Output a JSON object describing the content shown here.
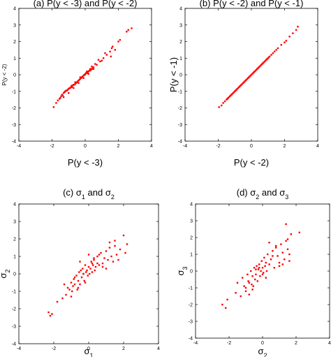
{
  "chart_data": [
    {
      "type": "scatter",
      "title": "(a) P(y < -3) and P(y < -2)",
      "xlabel": "P(y < -3)",
      "ylabel": "P(y < -2)",
      "xlim": [
        -4,
        4
      ],
      "ylim": [
        -4,
        4
      ],
      "xticks": [
        "-4",
        "-2",
        "0",
        "2",
        "4"
      ],
      "yticks": [
        "-4",
        "-3",
        "-2",
        "-1",
        "0",
        "1",
        "2",
        "3",
        "4"
      ],
      "grid": false,
      "marker_color": "#ff0000",
      "x": [
        -1.9,
        -1.75,
        -1.65,
        -1.55,
        -1.5,
        -1.45,
        -1.4,
        -1.35,
        -1.3,
        -1.25,
        -1.2,
        -1.15,
        -1.1,
        -1.05,
        -1.0,
        -0.95,
        -0.9,
        -0.85,
        -0.8,
        -0.75,
        -0.7,
        -0.65,
        -0.6,
        -0.55,
        -0.5,
        -0.45,
        -0.4,
        -0.35,
        -0.3,
        -0.25,
        -0.2,
        -0.15,
        -0.1,
        -0.05,
        0.0,
        0.05,
        0.1,
        0.15,
        0.2,
        0.25,
        0.3,
        0.35,
        0.4,
        0.45,
        0.5,
        -1.3,
        -1.0,
        -0.7,
        -0.4,
        -0.1,
        0.2,
        0.5,
        -1.2,
        -0.8,
        -0.3,
        0.1,
        0.4,
        -0.6,
        0.0,
        0.3,
        0.7,
        0.9,
        1.1,
        1.3,
        1.5,
        1.55,
        1.6,
        1.65,
        1.8,
        2.0,
        2.1,
        2.5,
        2.6,
        2.8,
        0.6,
        0.8,
        1.0,
        1.2
      ],
      "y": [
        -1.95,
        -1.7,
        -1.55,
        -1.45,
        -1.4,
        -1.3,
        -1.2,
        -1.25,
        -1.1,
        -1.05,
        -1.0,
        -0.95,
        -0.95,
        -0.9,
        -0.85,
        -0.8,
        -0.8,
        -0.7,
        -0.75,
        -0.65,
        -0.6,
        -0.6,
        -0.55,
        -0.5,
        -0.45,
        -0.4,
        -0.35,
        -0.3,
        -0.25,
        -0.2,
        -0.15,
        -0.1,
        -0.05,
        0.0,
        0.05,
        0.1,
        0.1,
        0.15,
        0.2,
        0.25,
        0.25,
        0.3,
        0.35,
        0.4,
        0.45,
        -1.35,
        -1.1,
        -0.8,
        -0.5,
        -0.2,
        0.05,
        0.35,
        -1.0,
        -0.65,
        -0.15,
        0.2,
        0.5,
        -0.45,
        0.0,
        0.35,
        0.6,
        0.8,
        1.0,
        1.2,
        1.4,
        1.1,
        1.6,
        1.7,
        1.5,
        2.0,
        2.1,
        2.6,
        2.7,
        2.8,
        0.65,
        0.9,
        0.85,
        1.3
      ]
    },
    {
      "type": "scatter",
      "title": "(b) P(y < -2) and P(y < -1)",
      "xlabel": "P(y < -2)",
      "ylabel": "P(y < -1)",
      "xlim": [
        -4,
        4
      ],
      "ylim": [
        -4,
        4
      ],
      "xticks": [
        "-4",
        "-2",
        "0",
        "2",
        "4"
      ],
      "yticks": [
        "-4",
        "-3",
        "-2",
        "-1",
        "0",
        "1",
        "2",
        "3",
        "4"
      ],
      "grid": false,
      "marker_color": "#ff0000",
      "x": [
        -1.95,
        -1.8,
        -1.7,
        -1.6,
        -1.5,
        -1.45,
        -1.4,
        -1.35,
        -1.3,
        -1.25,
        -1.2,
        -1.15,
        -1.1,
        -1.05,
        -1.0,
        -0.95,
        -0.9,
        -0.85,
        -0.8,
        -0.75,
        -0.7,
        -0.65,
        -0.6,
        -0.55,
        -0.5,
        -0.45,
        -0.4,
        -0.35,
        -0.3,
        -0.25,
        -0.2,
        -0.15,
        -0.1,
        -0.05,
        0.0,
        0.05,
        0.1,
        0.15,
        0.2,
        0.25,
        0.3,
        0.35,
        0.4,
        0.45,
        0.5,
        0.55,
        0.6,
        0.65,
        0.7,
        0.75,
        0.8,
        0.85,
        0.9,
        0.95,
        1.0,
        1.05,
        1.1,
        1.2,
        1.3,
        1.4,
        1.5,
        1.6,
        1.8,
        2.0,
        2.1,
        2.3,
        2.5,
        2.7,
        2.8
      ],
      "y": [
        -1.95,
        -1.85,
        -1.7,
        -1.6,
        -1.5,
        -1.45,
        -1.4,
        -1.35,
        -1.3,
        -1.25,
        -1.2,
        -1.15,
        -1.1,
        -1.05,
        -1.0,
        -0.95,
        -0.9,
        -0.85,
        -0.8,
        -0.75,
        -0.7,
        -0.65,
        -0.6,
        -0.55,
        -0.5,
        -0.45,
        -0.4,
        -0.35,
        -0.3,
        -0.25,
        -0.2,
        -0.15,
        -0.1,
        -0.05,
        0.0,
        0.05,
        0.1,
        0.15,
        0.2,
        0.25,
        0.3,
        0.35,
        0.4,
        0.45,
        0.5,
        0.55,
        0.6,
        0.65,
        0.7,
        0.75,
        0.8,
        0.85,
        0.9,
        0.95,
        1.0,
        1.05,
        1.1,
        1.2,
        1.3,
        1.4,
        1.5,
        1.6,
        1.8,
        1.95,
        2.05,
        2.3,
        2.5,
        2.7,
        2.9
      ]
    },
    {
      "type": "scatter",
      "title": "(c) σ1 and σ2",
      "xlabel": "σ1",
      "ylabel": "σ2",
      "xlim": [
        -4,
        4
      ],
      "ylim": [
        -4,
        4
      ],
      "xticks": [
        "-4",
        "-2",
        "0",
        "2",
        "4"
      ],
      "yticks": [
        "-4",
        "-3",
        "-2",
        "-1",
        "0",
        "1",
        "2",
        "3",
        "4"
      ],
      "grid": false,
      "marker_color": "#ff0000",
      "x": [
        -2.3,
        -2.2,
        -2.1,
        -1.8,
        -1.5,
        -1.4,
        -1.3,
        -1.2,
        -1.1,
        -1.0,
        -0.95,
        -0.9,
        -0.85,
        -0.8,
        -0.7,
        -0.65,
        -0.6,
        -0.55,
        -0.5,
        -0.45,
        -0.4,
        -0.35,
        -0.3,
        -0.25,
        -0.2,
        -0.15,
        -0.1,
        -0.05,
        0.0,
        0.05,
        0.1,
        0.15,
        0.2,
        0.25,
        0.3,
        0.35,
        0.4,
        0.5,
        0.6,
        0.7,
        0.8,
        0.9,
        1.0,
        1.1,
        1.2,
        1.3,
        1.4,
        1.5,
        1.6,
        1.8,
        2.0,
        2.2,
        -1.0,
        -0.6,
        -0.2,
        0.2,
        0.6,
        1.0,
        -0.8,
        -0.3,
        0.3,
        0.8,
        1.2,
        1.7,
        2.1,
        -0.5,
        0.0,
        0.5,
        1.5
      ],
      "y": [
        -2.2,
        -2.4,
        -2.3,
        -1.6,
        -1.4,
        -0.6,
        -1.2,
        -0.8,
        -0.9,
        -0.5,
        -1.0,
        -0.7,
        -0.3,
        -0.6,
        -0.1,
        -0.9,
        -0.4,
        0.1,
        -0.6,
        0.2,
        -0.2,
        0.3,
        0.0,
        -0.4,
        0.5,
        0.1,
        0.2,
        -0.1,
        0.4,
        0.0,
        0.3,
        0.7,
        0.1,
        0.5,
        0.8,
        0.2,
        0.4,
        1.0,
        0.5,
        1.2,
        0.6,
        0.9,
        1.3,
        0.8,
        1.5,
        1.0,
        0.7,
        1.6,
        1.1,
        1.4,
        2.2,
        1.7,
        -1.3,
        -0.8,
        -0.5,
        0.6,
        1.1,
        0.3,
        -0.2,
        0.0,
        0.9,
        0.4,
        1.8,
        0.8,
        1.2,
        0.7,
        1.1,
        0.6,
        1.9
      ]
    },
    {
      "type": "scatter",
      "title": "(d) σ2 and σ3",
      "xlabel": "σ2",
      "ylabel": "σ3",
      "xlim": [
        -4,
        4
      ],
      "ylim": [
        -4,
        4
      ],
      "xticks": [
        "-4",
        "-2",
        "0",
        "2",
        "4"
      ],
      "yticks": [
        "-4",
        "-3",
        "-2",
        "-1",
        "0",
        "1",
        "2",
        "3",
        "4"
      ],
      "grid": false,
      "marker_color": "#ff0000",
      "x": [
        -2.4,
        -2.2,
        -2.1,
        -1.6,
        -1.5,
        -1.3,
        -1.2,
        -1.1,
        -1.0,
        -0.9,
        -0.85,
        -0.8,
        -0.7,
        -0.65,
        -0.6,
        -0.55,
        -0.5,
        -0.45,
        -0.4,
        -0.35,
        -0.3,
        -0.25,
        -0.2,
        -0.15,
        -0.1,
        -0.05,
        0.0,
        0.05,
        0.1,
        0.15,
        0.2,
        0.25,
        0.3,
        0.4,
        0.5,
        0.6,
        0.7,
        0.8,
        0.9,
        1.0,
        1.1,
        1.2,
        1.3,
        1.4,
        1.5,
        1.6,
        1.7,
        2.2,
        -1.0,
        -0.6,
        -0.2,
        0.2,
        0.6,
        1.0,
        1.4,
        -0.8,
        0.0,
        0.8,
        1.2,
        -0.4,
        0.4,
        1.5,
        1.6
      ],
      "y": [
        -2.0,
        -2.2,
        -1.7,
        -1.3,
        -0.7,
        -1.5,
        -0.4,
        -0.9,
        -1.2,
        -0.2,
        -0.6,
        -1.4,
        0.0,
        -0.8,
        -0.3,
        -0.9,
        0.2,
        -0.5,
        -0.2,
        0.3,
        -0.6,
        0.1,
        0.4,
        -0.3,
        0.0,
        0.6,
        0.2,
        -0.1,
        0.8,
        0.3,
        0.5,
        0.0,
        1.0,
        0.4,
        0.7,
        1.2,
        0.2,
        1.4,
        0.9,
        0.5,
        1.6,
        1.1,
        0.7,
        1.8,
        1.3,
        1.0,
        2.2,
        2.3,
        -1.0,
        -1.1,
        0.2,
        -0.4,
        0.9,
        0.3,
        2.8,
        -0.7,
        -0.2,
        1.5,
        0.4,
        0.1,
        1.7,
        1.9,
        0.6
      ]
    }
  ]
}
